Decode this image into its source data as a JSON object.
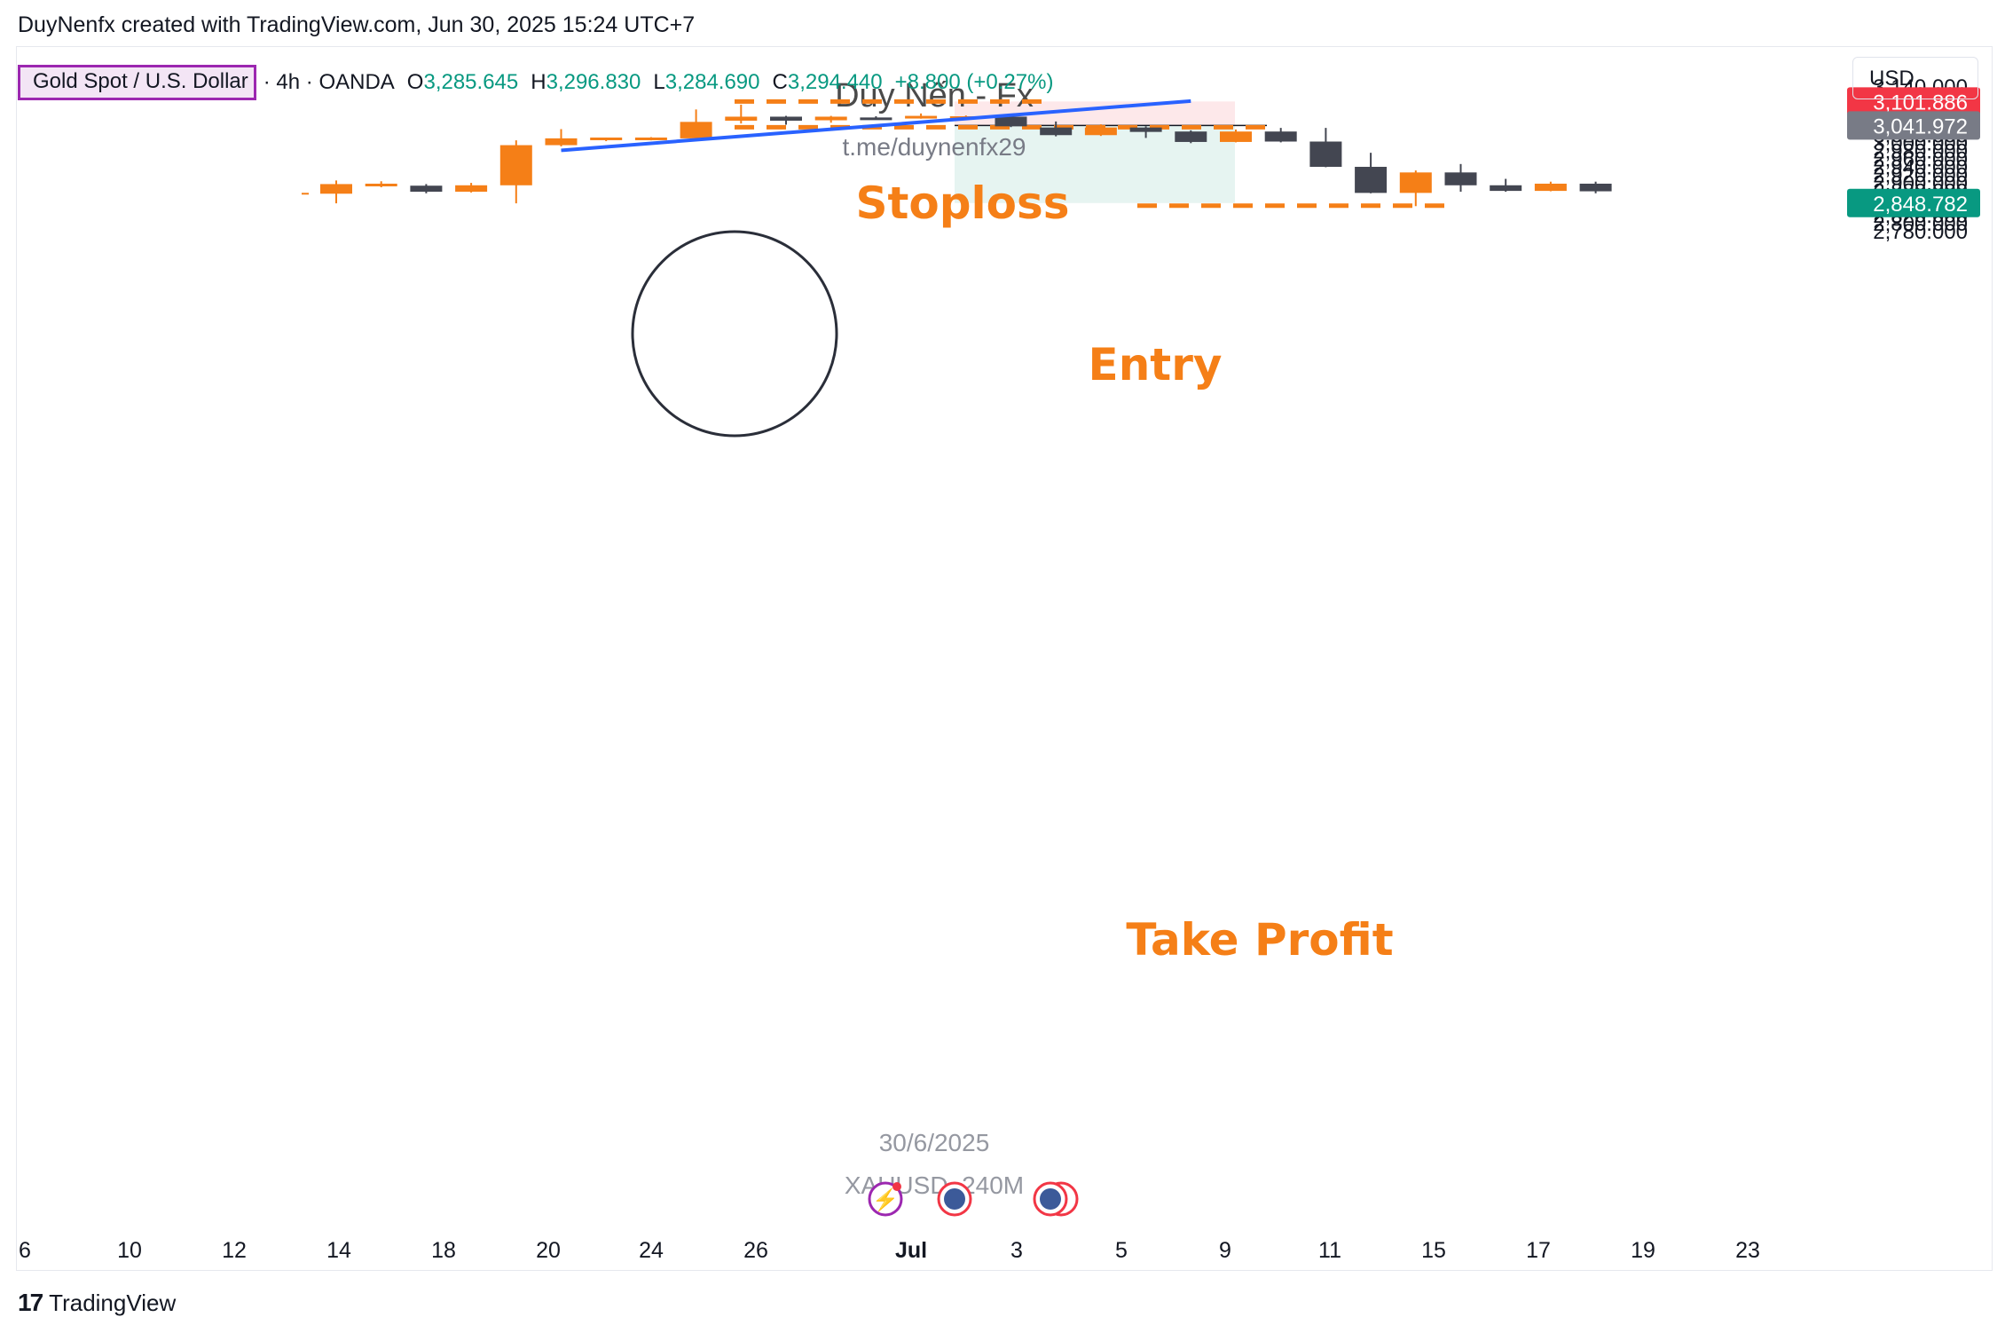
{
  "header": {
    "attribution": "DuyNenfx created with TradingView.com, Jun 30, 2025 15:24 UTC+7"
  },
  "legend": {
    "symbol": "Gold Spot / U.S. Dollar",
    "interval_source": "· 4h · OANDA",
    "open_key": "O",
    "open_val": "3,285.645",
    "high_key": "H",
    "high_val": "3,296.830",
    "low_key": "L",
    "low_val": "3,284.690",
    "close_key": "C",
    "close_val": "3,294.440",
    "change": "+8.800 (+0.27%)"
  },
  "currency": "USD",
  "watermark": {
    "title": "Duy Nến - Fx",
    "link": "t.me/duynenfx29",
    "date": "30/6/2025",
    "ticker": "XAUUSD, 240M"
  },
  "annotations": {
    "stoploss": "Stoploss",
    "entry": "Entry",
    "take_profit": "Take Profit"
  },
  "price_badges": {
    "stoploss": "3,101.886",
    "entry": "3,041.972",
    "take_profit": "2,848.782"
  },
  "footer": {
    "brand": "TradingView",
    "brand_mark": "17"
  },
  "colors": {
    "bull": "#f57f17",
    "bear": "#434651",
    "stop_zone": "#fde8ea",
    "target_zone": "#e6f4f1",
    "trendline": "#2962ff",
    "stop_badge": "#f23645",
    "entry_badge": "#787b86",
    "tp_badge": "#089981",
    "annotation": "#f57f17"
  },
  "chart_data": {
    "type": "candlestick",
    "ylim": [
      2770,
      3150
    ],
    "y_ticks": [
      "3,140.000",
      "3,120.000",
      "3,100.000",
      "3,080.000",
      "3,060.000",
      "3,040.000",
      "3,020.000",
      "3,000.000",
      "2,980.000",
      "2,960.000",
      "2,940.000",
      "2,920.000",
      "2,900.000",
      "2,880.000",
      "2,860.000",
      "2,840.000",
      "2,820.000",
      "2,800.000",
      "2,780.000"
    ],
    "x_ticks": [
      "6",
      "10",
      "12",
      "14",
      "18",
      "20",
      "24",
      "26",
      "Jul",
      "3",
      "5",
      "9",
      "11",
      "15",
      "17",
      "19",
      "23"
    ],
    "candles": [
      {
        "o": 2872,
        "h": 2905,
        "l": 2848,
        "c": 2896
      },
      {
        "o": 2892,
        "h": 2903,
        "l": 2888,
        "c": 2897
      },
      {
        "o": 2892,
        "h": 2896,
        "l": 2873,
        "c": 2877
      },
      {
        "o": 2877,
        "h": 2899,
        "l": 2875,
        "c": 2893
      },
      {
        "o": 2893,
        "h": 3005,
        "l": 2848,
        "c": 2993
      },
      {
        "o": 2993,
        "h": 3033,
        "l": 2990,
        "c": 3010
      },
      {
        "o": 3008,
        "h": 3012,
        "l": 3003,
        "c": 3012
      },
      {
        "o": 3009,
        "h": 3013,
        "l": 3005,
        "c": 3012
      },
      {
        "o": 3010,
        "h": 3082,
        "l": 3009,
        "c": 3051
      },
      {
        "o": 3054,
        "h": 3094,
        "l": 3047,
        "c": 3064
      },
      {
        "o": 3064,
        "h": 3066,
        "l": 3044,
        "c": 3054
      },
      {
        "o": 3055,
        "h": 3066,
        "l": 3049,
        "c": 3064
      },
      {
        "o": 3062,
        "h": 3065,
        "l": 3058,
        "c": 3061
      },
      {
        "o": 3062,
        "h": 3072,
        "l": 3059,
        "c": 3066
      },
      {
        "o": 3065,
        "h": 3067,
        "l": 3060,
        "c": 3065
      },
      {
        "o": 3064,
        "h": 3068,
        "l": 3038,
        "c": 3040
      },
      {
        "o": 3037,
        "h": 3052,
        "l": 3015,
        "c": 3018
      },
      {
        "o": 3018,
        "h": 3045,
        "l": 3016,
        "c": 3037
      },
      {
        "o": 3037,
        "h": 3040,
        "l": 3011,
        "c": 3026
      },
      {
        "o": 3027,
        "h": 3030,
        "l": 2998,
        "c": 3001
      },
      {
        "o": 3001,
        "h": 3032,
        "l": 3000,
        "c": 3027
      },
      {
        "o": 3027,
        "h": 3036,
        "l": 3000,
        "c": 3002
      },
      {
        "o": 3002,
        "h": 3036,
        "l": 2938,
        "c": 2939
      },
      {
        "o": 2939,
        "h": 2974,
        "l": 2873,
        "c": 2874
      },
      {
        "o": 2874,
        "h": 2930,
        "l": 2841,
        "c": 2925
      },
      {
        "o": 2925,
        "h": 2946,
        "l": 2877,
        "c": 2893
      },
      {
        "o": 2893,
        "h": 2909,
        "l": 2877,
        "c": 2879
      },
      {
        "o": 2879,
        "h": 2902,
        "l": 2878,
        "c": 2897
      },
      {
        "o": 2897,
        "h": 2902,
        "l": 2873,
        "c": 2878
      }
    ],
    "trade": {
      "stoploss": 3101.886,
      "entry": 3041.972,
      "take_profit": 2848.782
    },
    "trendline": {
      "from": [
        2980,
        5
      ],
      "to": [
        3103,
        19
      ]
    }
  }
}
